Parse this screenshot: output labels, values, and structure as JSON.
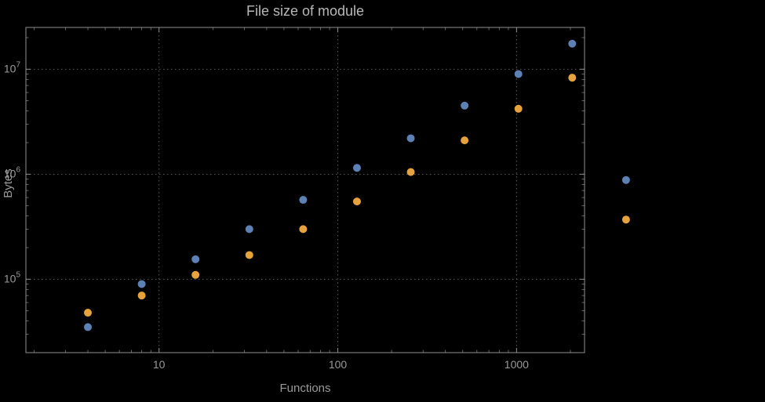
{
  "chart_data": {
    "type": "scatter",
    "title": "File size of module",
    "xlabel": "Functions",
    "ylabel": "Bytes",
    "x_scale": "log",
    "y_scale": "log",
    "x_range": [
      1.8,
      2400
    ],
    "y_range": [
      20000,
      25000000
    ],
    "x_ticks": [
      10,
      100,
      1000
    ],
    "y_ticks": [
      100000,
      1000000,
      10000000
    ],
    "grid": "dotted",
    "legend": "none",
    "series": [
      {
        "name": "series-blue",
        "color": "#5e81b5",
        "points": [
          [
            4,
            35000
          ],
          [
            8,
            90000
          ],
          [
            16,
            155000
          ],
          [
            32,
            300000
          ],
          [
            64,
            570000
          ],
          [
            128,
            1150000
          ],
          [
            256,
            2200000
          ],
          [
            512,
            4500000
          ],
          [
            1024,
            9000000
          ],
          [
            2048,
            17500000
          ],
          [
            4096,
            880000
          ]
        ]
      },
      {
        "name": "series-orange",
        "color": "#e6a23c",
        "points": [
          [
            4,
            48000
          ],
          [
            8,
            70000
          ],
          [
            16,
            110000
          ],
          [
            32,
            170000
          ],
          [
            64,
            300000
          ],
          [
            128,
            550000
          ],
          [
            256,
            1050000
          ],
          [
            512,
            2100000
          ],
          [
            1024,
            4200000
          ],
          [
            2048,
            8300000
          ],
          [
            4096,
            370000
          ]
        ]
      }
    ]
  }
}
